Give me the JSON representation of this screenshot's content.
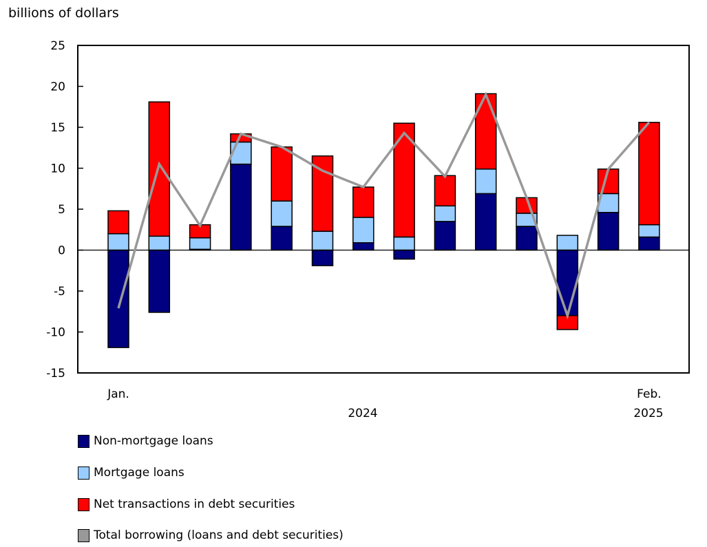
{
  "chart_data": {
    "type": "bar",
    "stacked": true,
    "ylabel": "billions of dollars",
    "ylim": [
      -15,
      25
    ],
    "yticks": [
      25,
      20,
      15,
      10,
      5,
      0,
      -5,
      -10,
      -15
    ],
    "grid": false,
    "legend_position": "bottom",
    "categories": [
      "Jan.",
      "",
      "",
      "",
      "",
      "",
      "",
      "",
      "",
      "",
      "",
      "",
      "",
      "Feb."
    ],
    "year_labels": [
      {
        "label": "2024",
        "after_index": 6
      },
      {
        "label": "2025",
        "after_index": 13
      }
    ],
    "series": [
      {
        "name": "Non-mortgage loans",
        "kind": "bar",
        "color": "#000080",
        "values": [
          -11.9,
          -7.6,
          0.1,
          10.5,
          2.9,
          -1.9,
          0.9,
          -1.1,
          3.5,
          6.9,
          2.9,
          -8.0,
          4.6,
          1.6
        ]
      },
      {
        "name": "Mortgage loans",
        "kind": "bar",
        "color": "#99ccff",
        "values": [
          2.0,
          1.7,
          1.4,
          2.7,
          3.1,
          2.3,
          3.1,
          1.6,
          1.9,
          3.0,
          1.6,
          1.8,
          2.3,
          1.5
        ]
      },
      {
        "name": "Net transactions in debt securities",
        "kind": "bar",
        "color": "#ff0000",
        "values": [
          2.8,
          16.4,
          1.6,
          1.0,
          6.6,
          9.2,
          3.7,
          13.9,
          3.7,
          9.2,
          1.9,
          -1.7,
          3.0,
          12.5
        ]
      },
      {
        "name": "Total borrowing (loans and debt securities)",
        "kind": "line",
        "color": "#999999",
        "values": [
          -7.1,
          10.5,
          3.0,
          14.2,
          12.6,
          9.7,
          7.7,
          14.3,
          9.0,
          19.0,
          6.4,
          -8.0,
          9.9,
          15.6
        ]
      }
    ]
  }
}
